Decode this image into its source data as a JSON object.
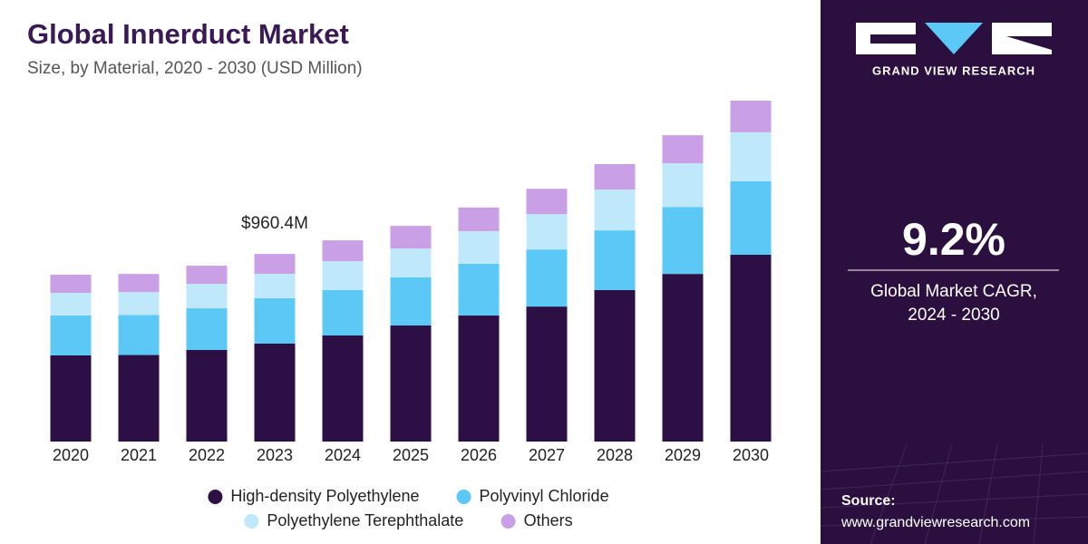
{
  "chart_data": {
    "type": "stacked-bar",
    "title": "Global Innerduct Market",
    "subtitle": "Size, by Material, 2020 - 2030 (USD Million)",
    "categories": [
      "2020",
      "2021",
      "2022",
      "2023",
      "2024",
      "2025",
      "2026",
      "2027",
      "2028",
      "2029",
      "2030"
    ],
    "series": [
      {
        "name": "High-density Polyethylene",
        "color": "#2c0f45",
        "values": [
          441,
          443,
          469,
          501.2,
          543,
          594,
          645,
          691,
          775,
          858,
          956
        ]
      },
      {
        "name": "Polyvinyl Chloride",
        "color": "#5bc8f5",
        "values": [
          204,
          205,
          213,
          232.0,
          232,
          246,
          265,
          292,
          306,
          343,
          376
        ]
      },
      {
        "name": "Polyethylene Terephthalate",
        "color": "#bfe9fb",
        "values": [
          116,
          117,
          125,
          125.3,
          148,
          148,
          167,
          181,
          209,
          223,
          251
        ]
      },
      {
        "name": "Others",
        "color": "#c9a0e6",
        "values": [
          93,
          93,
          93,
          101.9,
          107,
          116,
          121,
          130,
          130,
          144,
          162
        ]
      }
    ],
    "annotations": [
      {
        "category_index": 3,
        "value": 960.4,
        "label": "$960.4M"
      }
    ]
  },
  "sidebar": {
    "brand": "GRAND VIEW RESEARCH",
    "cagr": "9.2%",
    "cagr_caption_1": "Global Market CAGR,",
    "cagr_caption_2": "2024 - 2030",
    "source_label": "Source:",
    "source_url": "www.grandviewresearch.com"
  }
}
